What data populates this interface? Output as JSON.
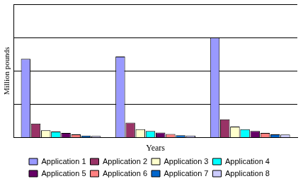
{
  "chart_data": {
    "type": "bar",
    "x_label": "Years",
    "y_label": "Million pounds",
    "categories": [
      null,
      null,
      null
    ],
    "series": [
      {
        "name": "Application 1",
        "color": "#9999ff",
        "values": [
          2.36,
          2.43,
          3.0
        ]
      },
      {
        "name": "Application 2",
        "color": "#993366",
        "values": [
          0.42,
          0.45,
          0.55
        ]
      },
      {
        "name": "Application 3",
        "color": "#ffffcc",
        "values": [
          0.22,
          0.25,
          0.33
        ]
      },
      {
        "name": "Application 4",
        "color": "#00ffff",
        "values": [
          0.18,
          0.2,
          0.25
        ]
      },
      {
        "name": "Application 5",
        "color": "#660066",
        "values": [
          0.14,
          0.15,
          0.2
        ]
      },
      {
        "name": "Application 6",
        "color": "#ff8080",
        "values": [
          0.1,
          0.11,
          0.14
        ]
      },
      {
        "name": "Application 7",
        "color": "#0066cc",
        "values": [
          0.06,
          0.07,
          0.1
        ]
      },
      {
        "name": "Application 8",
        "color": "#ccccff",
        "values": [
          0.05,
          0.06,
          0.09
        ]
      }
    ],
    "ylim": [
      0,
      4
    ],
    "yticks": [
      0,
      1,
      2,
      3,
      4
    ],
    "grid": true,
    "legend": "bottom",
    "tick_labels": false
  }
}
